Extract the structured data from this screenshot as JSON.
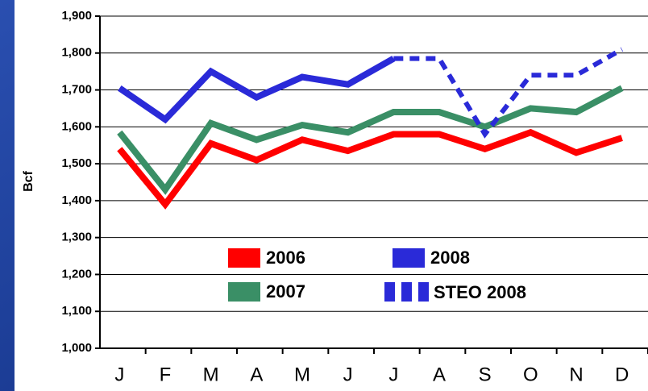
{
  "chart_data": {
    "type": "line",
    "y_label": "Bcf",
    "categories": [
      "J",
      "F",
      "M",
      "A",
      "M",
      "J",
      "J",
      "A",
      "S",
      "O",
      "N",
      "D"
    ],
    "series": [
      {
        "name": "2006",
        "color": "#ff0000",
        "values": [
          1540,
          1390,
          1555,
          1510,
          1565,
          1535,
          1580,
          1580,
          1540,
          1585,
          1530,
          1570
        ]
      },
      {
        "name": "2007",
        "color": "#3a8f66",
        "values": [
          1585,
          1430,
          1610,
          1565,
          1605,
          1585,
          1640,
          1640,
          1600,
          1650,
          1640,
          1705
        ]
      },
      {
        "name": "2008",
        "color": "#2a2ad8",
        "values": [
          1705,
          1620,
          1750,
          1680,
          1735,
          1715,
          1785,
          null,
          null,
          null,
          null,
          null
        ]
      },
      {
        "name": "STEO 2008",
        "color": "#2a2ad8",
        "dashed": true,
        "values": [
          null,
          null,
          null,
          null,
          null,
          null,
          1785,
          1785,
          1580,
          1740,
          1740,
          1810
        ]
      }
    ],
    "ylim": [
      1000,
      1900
    ],
    "yticks": [
      {
        "value": 1000,
        "label": "1,000"
      },
      {
        "value": 1100,
        "label": "1,100"
      },
      {
        "value": 1200,
        "label": "1,200"
      },
      {
        "value": 1300,
        "label": "1,300"
      },
      {
        "value": 1400,
        "label": "1,400"
      },
      {
        "value": 1500,
        "label": "1,500"
      },
      {
        "value": 1600,
        "label": "1,600"
      },
      {
        "value": 1700,
        "label": "1,700"
      },
      {
        "value": 1800,
        "label": "1,800"
      },
      {
        "value": 1900,
        "label": "1,900"
      }
    ],
    "grid": true
  }
}
